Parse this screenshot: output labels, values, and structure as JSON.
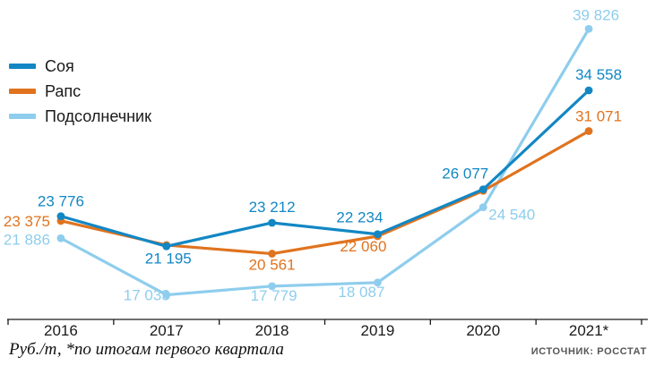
{
  "chart_data": {
    "type": "line",
    "title": "",
    "ylabel": "Руб./т",
    "x": [
      "2016",
      "2017",
      "2018",
      "2019",
      "2020",
      "2021*"
    ],
    "series": [
      {
        "name": "Соя",
        "color": "#1287c4",
        "values": [
          23776,
          21195,
          23212,
          22234,
          26077,
          34558
        ],
        "show_label": [
          true,
          true,
          true,
          true,
          true,
          true
        ]
      },
      {
        "name": "Рапс",
        "color": "#e0731e",
        "values": [
          23375,
          21300,
          20561,
          22060,
          25950,
          31071
        ],
        "show_label": [
          true,
          false,
          true,
          true,
          false,
          true
        ]
      },
      {
        "name": "Подсолнечник",
        "color": "#8ecded",
        "values": [
          21886,
          17033,
          17779,
          18087,
          24540,
          39826
        ],
        "show_label": [
          true,
          true,
          true,
          true,
          true,
          true
        ]
      }
    ],
    "ylim": [
      17000,
      40000
    ],
    "grid": false,
    "legend_position": "top-left"
  },
  "footer": {
    "caption": "Руб./т, *по итогам первого квартала",
    "source": "ИСТОЧНИК: РОССТАТ"
  }
}
